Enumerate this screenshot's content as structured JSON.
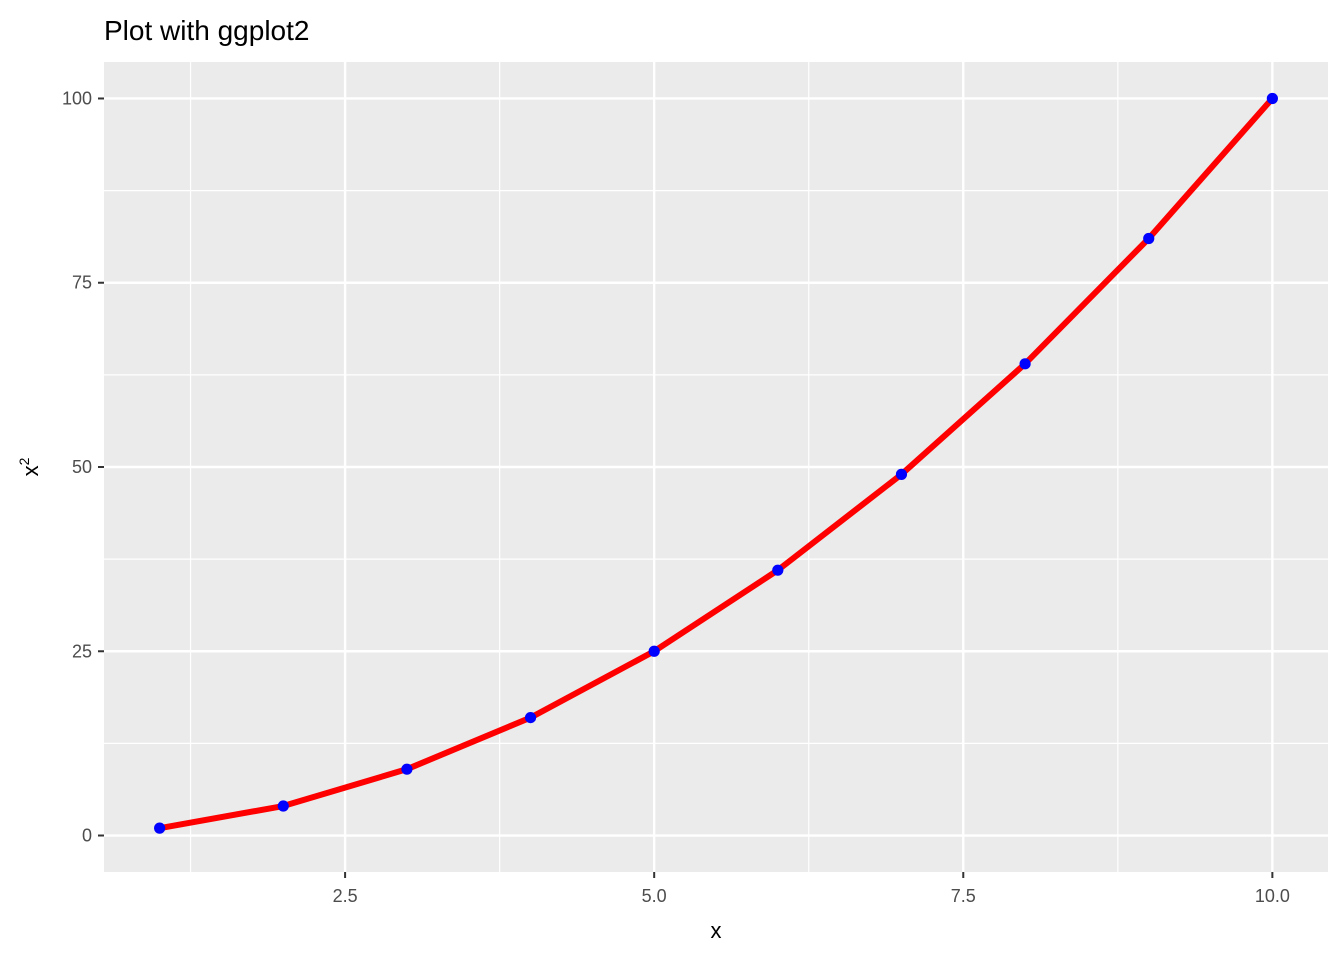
{
  "chart_data": {
    "type": "line",
    "title": "Plot with ggplot2",
    "xlabel": "x",
    "ylabel": "x",
    "ylabel_superscript": "2",
    "x": [
      1,
      2,
      3,
      4,
      5,
      6,
      7,
      8,
      9,
      10
    ],
    "series": [
      {
        "values": [
          1,
          4,
          9,
          16,
          25,
          36,
          49,
          64,
          81,
          100
        ],
        "line_color": "#ff0000",
        "point_color": "#0000ff"
      }
    ],
    "xlim": [
      0.55,
      10.45
    ],
    "ylim": [
      -4.95,
      104.95
    ],
    "x_ticks": [
      2.5,
      5.0,
      7.5,
      10.0
    ],
    "x_tick_labels": [
      "2.5",
      "5.0",
      "7.5",
      "10.0"
    ],
    "y_ticks": [
      0,
      25,
      50,
      75,
      100
    ],
    "y_tick_labels": [
      "0",
      "25",
      "50",
      "75",
      "100"
    ],
    "grid": true,
    "panel_background": "#ebebeb",
    "grid_color": "#ffffff"
  }
}
